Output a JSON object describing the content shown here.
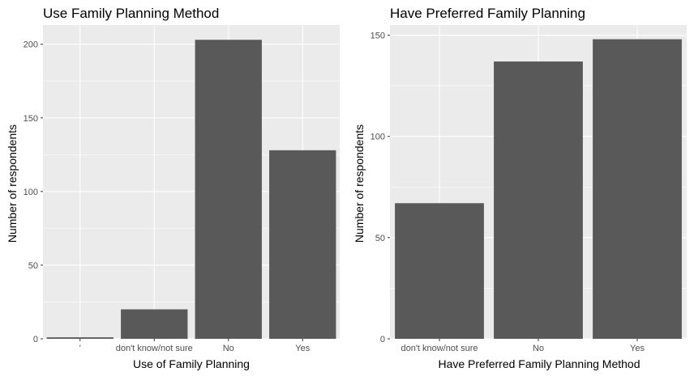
{
  "chart_data": [
    {
      "type": "bar",
      "title": "Use Family Planning Method",
      "xlabel": "Use of Family Planning",
      "ylabel": "Number of respondents",
      "categories": [
        "'",
        "don't know/not sure",
        "No",
        "Yes"
      ],
      "values": [
        1,
        20,
        203,
        128
      ],
      "ylim": [
        0,
        213
      ],
      "yticks": [
        0,
        50,
        100,
        150,
        200
      ],
      "grid": true,
      "colors": {
        "bar": "#595959",
        "panel": "#ebebeb",
        "grid": "#ffffff"
      }
    },
    {
      "type": "bar",
      "title": "Have Preferred Family Planning",
      "xlabel": "Have Preferred Family Planning Method",
      "ylabel": "Number of respondents",
      "categories": [
        "don't know/not sure",
        "No",
        "Yes"
      ],
      "values": [
        67,
        137,
        148
      ],
      "ylim": [
        0,
        155
      ],
      "yticks": [
        0,
        50,
        100,
        150
      ],
      "grid": true,
      "colors": {
        "bar": "#595959",
        "panel": "#ebebeb",
        "grid": "#ffffff"
      }
    }
  ]
}
